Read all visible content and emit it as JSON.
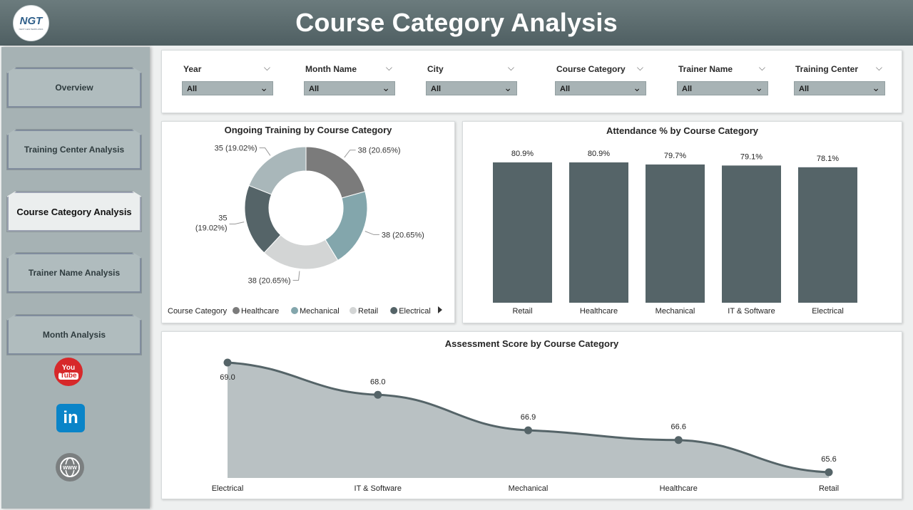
{
  "header": {
    "title": "Course Category Analysis",
    "logo_text": "NGT",
    "logo_subtext": "NEXT GEN TEMPLATES"
  },
  "sidebar": {
    "items": [
      {
        "label": "Overview",
        "active": false
      },
      {
        "label": "Training Center Analysis",
        "active": false
      },
      {
        "label": "Course Category Analysis",
        "active": true
      },
      {
        "label": "Trainer Name Analysis",
        "active": false
      },
      {
        "label": "Month Analysis",
        "active": false
      }
    ],
    "social": {
      "youtube_line1": "You",
      "youtube_line2": "Tube",
      "linkedin": "in"
    }
  },
  "filters": [
    {
      "label": "Year",
      "value": "All"
    },
    {
      "label": "Month Name",
      "value": "All"
    },
    {
      "label": "City",
      "value": "All"
    },
    {
      "label": "Course Category",
      "value": "All"
    },
    {
      "label": "Trainer Name",
      "value": "All"
    },
    {
      "label": "Training Center",
      "value": "All"
    }
  ],
  "colors": {
    "dark": "#556468",
    "teal": "#83a6ac",
    "light": "#d3d5d5",
    "mid": "#7b7b7b",
    "pale": "#a9b7ba",
    "area": "#b9c1c3"
  },
  "chart_data": [
    {
      "type": "pie",
      "title": "Ongoing Training by Course Category",
      "legend_title": "Course Category",
      "legend": [
        "Healthcare",
        "Mechanical",
        "Retail",
        "Electrical"
      ],
      "slices": [
        {
          "name": "Healthcare",
          "value": 38,
          "label": "38 (20.65%)",
          "color": "#7b7b7b"
        },
        {
          "name": "Mechanical",
          "value": 38,
          "label": "38 (20.65%)",
          "color": "#83a6ac"
        },
        {
          "name": "Retail",
          "value": 38,
          "label": "38 (20.65%)",
          "color": "#d3d5d5"
        },
        {
          "name": "Electrical",
          "value": 35,
          "label": "35 (19.02%)",
          "color": "#556468"
        },
        {
          "name": "",
          "value": 35,
          "label": "35 (19.02%)",
          "color": "#a9b7ba"
        }
      ]
    },
    {
      "type": "bar",
      "title": "Attendance % by Course Category",
      "categories": [
        "Retail",
        "Healthcare",
        "Mechanical",
        "IT & Software",
        "Electrical"
      ],
      "values": [
        80.9,
        80.9,
        79.7,
        79.1,
        78.1
      ],
      "labels": [
        "80.9%",
        "80.9%",
        "79.7%",
        "79.1%",
        "78.1%"
      ]
    },
    {
      "type": "area",
      "title": "Assessment Score by Course Category",
      "categories": [
        "Electrical",
        "IT & Software",
        "Mechanical",
        "Healthcare",
        "Retail"
      ],
      "values": [
        69.0,
        68.0,
        66.9,
        66.6,
        65.6
      ],
      "labels": [
        "69.0",
        "68.0",
        "66.9",
        "66.6",
        "65.6"
      ]
    }
  ]
}
